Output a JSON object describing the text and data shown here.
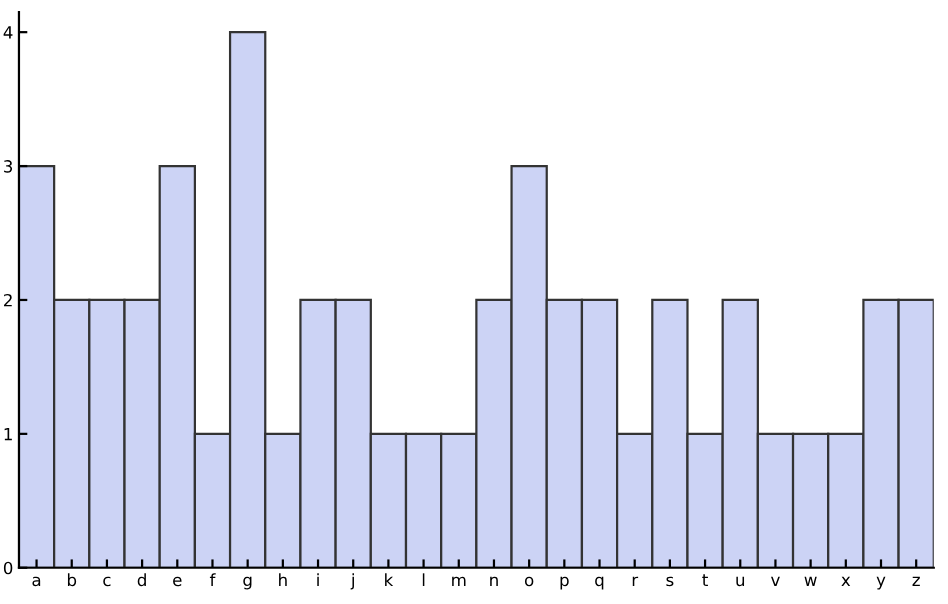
{
  "chart_data": {
    "type": "bar",
    "categories": [
      "a",
      "b",
      "c",
      "d",
      "e",
      "f",
      "g",
      "h",
      "i",
      "j",
      "k",
      "l",
      "m",
      "n",
      "o",
      "p",
      "q",
      "r",
      "s",
      "t",
      "u",
      "v",
      "w",
      "x",
      "y",
      "z"
    ],
    "values": [
      3,
      2,
      2,
      2,
      3,
      1,
      4,
      1,
      2,
      2,
      1,
      1,
      1,
      2,
      3,
      2,
      2,
      1,
      2,
      1,
      2,
      1,
      1,
      1,
      2,
      2
    ],
    "color": "#ccd3f5",
    "ylim": [
      0,
      4.15
    ],
    "yticks": [
      0,
      1,
      2,
      3,
      4
    ],
    "grid": false
  }
}
